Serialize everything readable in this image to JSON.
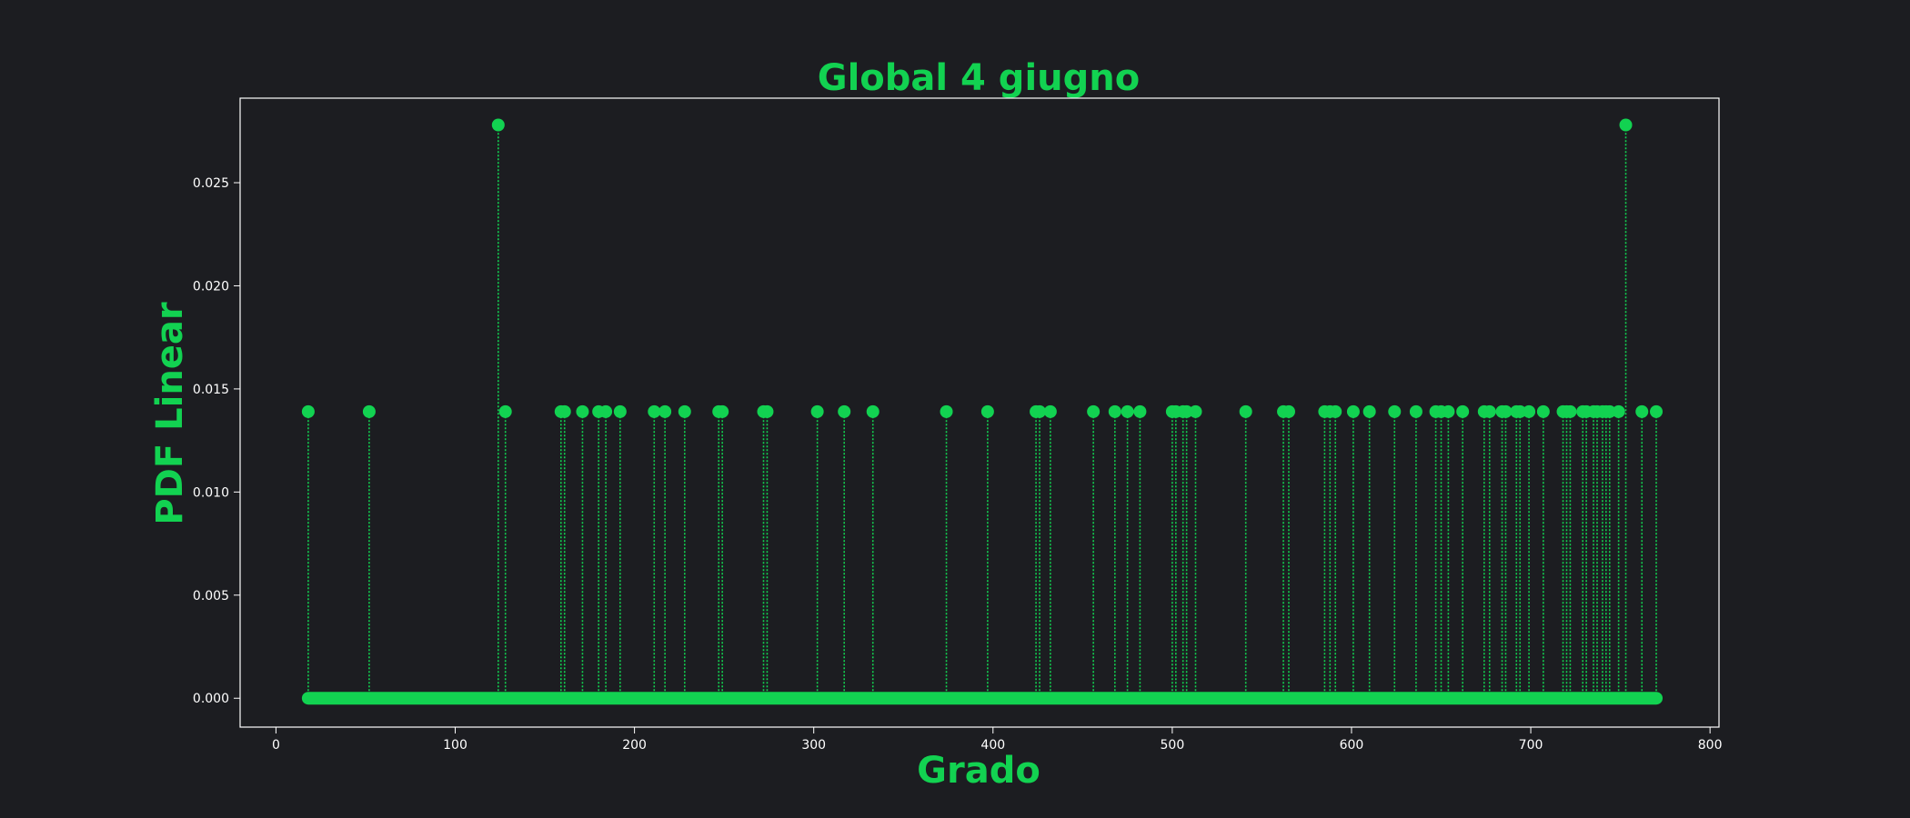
{
  "colors": {
    "background": "#1c1d21",
    "accent": "#12d251",
    "axis": "#ffffff",
    "text": "#ffffff"
  },
  "chart_data": {
    "type": "scatter",
    "style": "stem-dotted",
    "title": "Global 4 giugno",
    "xlabel": "Grado",
    "ylabel": "PDF Linear",
    "xlim": [
      -20,
      805
    ],
    "ylim": [
      -0.0014,
      0.0291
    ],
    "xticks": [
      0,
      100,
      200,
      300,
      400,
      500,
      600,
      700,
      800
    ],
    "xtick_labels": [
      "0",
      "100",
      "200",
      "300",
      "400",
      "500",
      "600",
      "700",
      "800"
    ],
    "yticks": [
      0,
      0.005,
      0.01,
      0.015,
      0.02,
      0.025
    ],
    "ytick_labels": [
      "0.000",
      "0.005",
      "0.010",
      "0.015",
      "0.020",
      "0.025"
    ],
    "grid": false,
    "baseline_range": [
      18,
      770
    ],
    "points": [
      {
        "x": 18,
        "y": 0.0139
      },
      {
        "x": 52,
        "y": 0.0139
      },
      {
        "x": 124,
        "y": 0.0278
      },
      {
        "x": 128,
        "y": 0.0139
      },
      {
        "x": 159,
        "y": 0.0139
      },
      {
        "x": 161,
        "y": 0.0139
      },
      {
        "x": 171,
        "y": 0.0139
      },
      {
        "x": 180,
        "y": 0.0139
      },
      {
        "x": 184,
        "y": 0.0139
      },
      {
        "x": 192,
        "y": 0.0139
      },
      {
        "x": 211,
        "y": 0.0139
      },
      {
        "x": 217,
        "y": 0.0139
      },
      {
        "x": 228,
        "y": 0.0139
      },
      {
        "x": 247,
        "y": 0.0139
      },
      {
        "x": 249,
        "y": 0.0139
      },
      {
        "x": 272,
        "y": 0.0139
      },
      {
        "x": 274,
        "y": 0.0139
      },
      {
        "x": 302,
        "y": 0.0139
      },
      {
        "x": 317,
        "y": 0.0139
      },
      {
        "x": 333,
        "y": 0.0139
      },
      {
        "x": 374,
        "y": 0.0139
      },
      {
        "x": 397,
        "y": 0.0139
      },
      {
        "x": 424,
        "y": 0.0139
      },
      {
        "x": 426,
        "y": 0.0139
      },
      {
        "x": 432,
        "y": 0.0139
      },
      {
        "x": 456,
        "y": 0.0139
      },
      {
        "x": 468,
        "y": 0.0139
      },
      {
        "x": 475,
        "y": 0.0139
      },
      {
        "x": 482,
        "y": 0.0139
      },
      {
        "x": 500,
        "y": 0.0139
      },
      {
        "x": 502,
        "y": 0.0139
      },
      {
        "x": 506,
        "y": 0.0139
      },
      {
        "x": 508,
        "y": 0.0139
      },
      {
        "x": 513,
        "y": 0.0139
      },
      {
        "x": 541,
        "y": 0.0139
      },
      {
        "x": 562,
        "y": 0.0139
      },
      {
        "x": 565,
        "y": 0.0139
      },
      {
        "x": 585,
        "y": 0.0139
      },
      {
        "x": 588,
        "y": 0.0139
      },
      {
        "x": 591,
        "y": 0.0139
      },
      {
        "x": 601,
        "y": 0.0139
      },
      {
        "x": 610,
        "y": 0.0139
      },
      {
        "x": 624,
        "y": 0.0139
      },
      {
        "x": 636,
        "y": 0.0139
      },
      {
        "x": 647,
        "y": 0.0139
      },
      {
        "x": 650,
        "y": 0.0139
      },
      {
        "x": 654,
        "y": 0.0139
      },
      {
        "x": 662,
        "y": 0.0139
      },
      {
        "x": 674,
        "y": 0.0139
      },
      {
        "x": 677,
        "y": 0.0139
      },
      {
        "x": 684,
        "y": 0.0139
      },
      {
        "x": 686,
        "y": 0.0139
      },
      {
        "x": 692,
        "y": 0.0139
      },
      {
        "x": 694,
        "y": 0.0139
      },
      {
        "x": 699,
        "y": 0.0139
      },
      {
        "x": 707,
        "y": 0.0139
      },
      {
        "x": 718,
        "y": 0.0139
      },
      {
        "x": 720,
        "y": 0.0139
      },
      {
        "x": 722,
        "y": 0.0139
      },
      {
        "x": 729,
        "y": 0.0139
      },
      {
        "x": 731,
        "y": 0.0139
      },
      {
        "x": 735,
        "y": 0.0139
      },
      {
        "x": 737,
        "y": 0.0139
      },
      {
        "x": 740,
        "y": 0.0139
      },
      {
        "x": 742,
        "y": 0.0139
      },
      {
        "x": 744,
        "y": 0.0139
      },
      {
        "x": 749,
        "y": 0.0139
      },
      {
        "x": 753,
        "y": 0.0278
      },
      {
        "x": 762,
        "y": 0.0139
      },
      {
        "x": 770,
        "y": 0.0139
      }
    ]
  }
}
